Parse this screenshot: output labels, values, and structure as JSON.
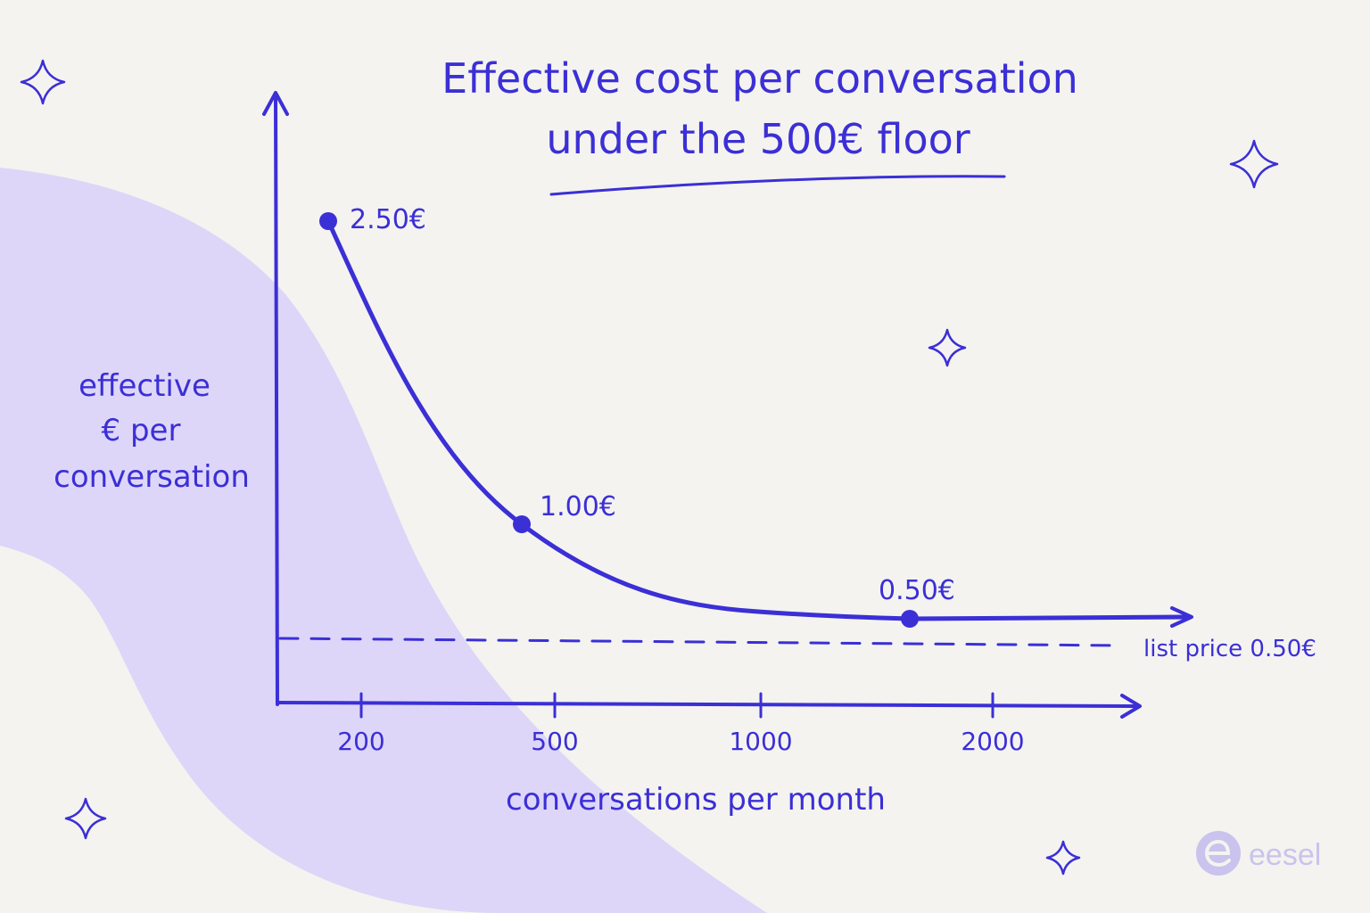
{
  "colors": {
    "background": "#f4f3ef",
    "ink": "#3b2fd6",
    "blob": "#ddd6f8",
    "logo": "#c9c3ee"
  },
  "chart_data": {
    "type": "line",
    "title": "Effective cost per conversation under the 500€ floor",
    "title_lines": [
      "Effective cost per conversation",
      "under the 500€ floor"
    ],
    "xlabel": "conversations per month",
    "ylabel_lines": [
      "effective",
      "€ per",
      "conversation"
    ],
    "x_ticks": [
      200,
      500,
      1000,
      2000
    ],
    "x_tick_labels": [
      "200",
      "500",
      "1000",
      "2000"
    ],
    "x_scale": "log",
    "series": [
      {
        "points": [
          {
            "x": 200,
            "y": 2.5,
            "label": "2.50€"
          },
          {
            "x": 500,
            "y": 1.0,
            "label": "1.00€"
          },
          {
            "x": 1000,
            "y": 0.5,
            "label": "0.50€"
          }
        ]
      }
    ],
    "reference_line": {
      "y": 0.5,
      "label": "list price 0.50€",
      "style": "dashed"
    },
    "grid": false,
    "legend": "none"
  },
  "icons": [
    "sparkle-icon",
    "eesel-logo-icon"
  ],
  "brand": {
    "name": "eesel"
  }
}
